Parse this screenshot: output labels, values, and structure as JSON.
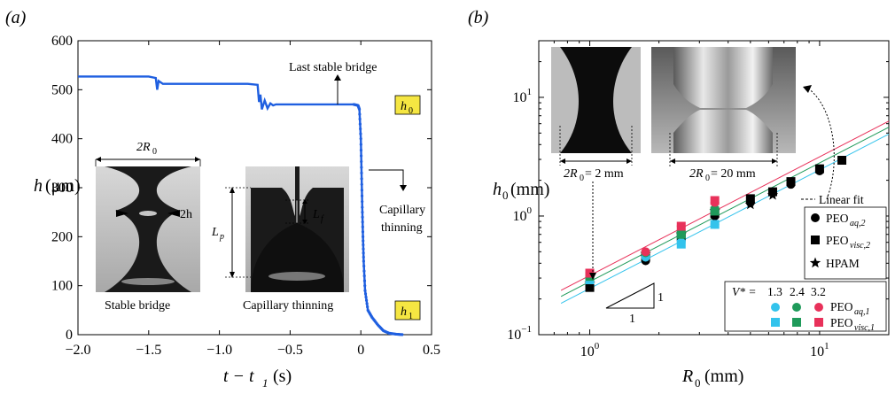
{
  "panel_a": {
    "label": "(a)",
    "ylabel_main": "h",
    "ylabel_unit": "(μm)",
    "xlabel": "t − t",
    "xlabel_sub": "1",
    "xlabel_unit": "(s)",
    "annotations": {
      "last_stable": "Last stable bridge",
      "capillary_thinning": "Capillary thinning",
      "h0": "h",
      "h0_sub": "0",
      "h1": "h",
      "h1_sub": "1",
      "two_r0": "2R",
      "two_r0_sub": "0",
      "two_h": "2h",
      "lf": "L",
      "lf_sub": "f",
      "lp": "L",
      "lp_sub": "p",
      "caption_stable": "Stable bridge",
      "caption_thinning": "Capillary thinning"
    },
    "highlight_color": "#f5e642"
  },
  "panel_b": {
    "label": "(b)",
    "ylabel_main": "h",
    "ylabel_sub": "0",
    "ylabel_unit": "(mm)",
    "xlabel_main": "R",
    "xlabel_sub": "0",
    "xlabel_unit": "(mm)",
    "inset_small": {
      "label": "2R",
      "label_sub": "0",
      "label_val": " = 2 mm"
    },
    "inset_large": {
      "label": "2R",
      "label_sub": "0",
      "label_val": " = 20 mm"
    },
    "linear_fit_label": "Linear fit",
    "slope_labels": [
      "1",
      "1"
    ],
    "legend_black": [
      {
        "label": "PEO",
        "sub": "aq,2",
        "marker": "circle"
      },
      {
        "label": "PEO",
        "sub": "visc,2",
        "marker": "square"
      },
      {
        "label": "HPAM",
        "sub": "",
        "marker": "star"
      }
    ],
    "legend_color": {
      "title": "V* =",
      "values": [
        "1.3",
        "2.4",
        "3.2"
      ],
      "rows": [
        {
          "label": "PEO",
          "sub": "aq,1",
          "marker": "circle"
        },
        {
          "label": "PEO",
          "sub": "visc,1",
          "marker": "square"
        }
      ]
    },
    "colors": {
      "v13": "#33c3ec",
      "v24": "#1f9a5a",
      "v32": "#e8315a"
    }
  },
  "chart_data": [
    {
      "type": "line",
      "panel": "a",
      "xlabel": "t − t1 (s)",
      "ylabel": "h (μm)",
      "xlim": [
        -2.0,
        0.5
      ],
      "ylim": [
        0,
        600
      ],
      "xticks": [
        "−2.0",
        "−1.5",
        "−1.0",
        "−0.5",
        "0",
        "0.5"
      ],
      "yticks": [
        "0",
        "100",
        "200",
        "300",
        "400",
        "500",
        "600"
      ],
      "color": "#1f5fe0",
      "x": [
        -2.0,
        -1.75,
        -1.5,
        -1.45,
        -1.44,
        -1.43,
        -1.4,
        -1.2,
        -1.0,
        -0.8,
        -0.73,
        -0.72,
        -0.71,
        -0.7,
        -0.68,
        -0.66,
        -0.64,
        -0.62,
        -0.6,
        -0.4,
        -0.2,
        -0.05,
        -0.02,
        -0.01,
        0.0,
        0.005,
        0.01,
        0.015,
        0.02,
        0.03,
        0.05,
        0.08,
        0.12,
        0.16,
        0.2,
        0.25,
        0.3
      ],
      "y": [
        527,
        527,
        527,
        524,
        500,
        518,
        512,
        512,
        512,
        512,
        510,
        475,
        490,
        460,
        478,
        462,
        472,
        468,
        470,
        470,
        470,
        470,
        468,
        460,
        400,
        330,
        260,
        200,
        150,
        90,
        50,
        35,
        20,
        8,
        3,
        1,
        0
      ]
    },
    {
      "type": "scatter",
      "panel": "b",
      "xscale": "log",
      "yscale": "log",
      "xlabel": "R0 (mm)",
      "ylabel": "h0 (mm)",
      "xlim": [
        0.6,
        20
      ],
      "ylim": [
        0.1,
        30
      ],
      "xticks": [
        "10^0",
        "10^1"
      ],
      "yticks": [
        "10^−1",
        "10^0",
        "10^1"
      ],
      "series": [
        {
          "name": "PEO aq,2",
          "marker": "circle",
          "color": "#000000",
          "x": [
            1,
            1,
            1.75,
            1.75,
            2.5,
            3.5,
            5,
            7.5,
            10
          ],
          "y": [
            0.26,
            0.28,
            0.42,
            0.46,
            0.62,
            1.0,
            1.3,
            1.85,
            2.4
          ]
        },
        {
          "name": "PEO visc,2",
          "marker": "square",
          "color": "#000000",
          "x": [
            1,
            1.75,
            2.5,
            3.5,
            5,
            6.25,
            7.5,
            10,
            12.5
          ],
          "y": [
            0.25,
            0.45,
            0.68,
            1.05,
            1.4,
            1.6,
            1.95,
            2.5,
            2.95
          ]
        },
        {
          "name": "HPAM",
          "marker": "star",
          "color": "#000000",
          "x": [
            1,
            1.75,
            2.5,
            3.5,
            5,
            6.25
          ],
          "y": [
            0.27,
            0.48,
            0.7,
            1.1,
            1.25,
            1.5
          ]
        },
        {
          "name": "PEO aq,1",
          "marker": "circle",
          "color": "#33c3ec",
          "x": [
            1,
            1.75,
            2.5,
            3.5
          ],
          "y": [
            0.3,
            0.45,
            0.6,
            0.85
          ]
        },
        {
          "name": "PEO aq,1",
          "marker": "circle",
          "color": "#1f9a5a",
          "x": [
            1,
            1.75,
            2.5,
            3.5
          ],
          "y": [
            0.31,
            0.49,
            0.72,
            1.15
          ]
        },
        {
          "name": "PEO aq,1",
          "marker": "circle",
          "color": "#e8315a",
          "x": [
            1,
            1.75,
            2.5,
            3.5
          ],
          "y": [
            0.33,
            0.5,
            0.82,
            1.3
          ]
        },
        {
          "name": "PEO visc,1",
          "marker": "square",
          "color": "#33c3ec",
          "x": [
            1,
            2.5,
            3.5
          ],
          "y": [
            0.29,
            0.58,
            0.85
          ]
        },
        {
          "name": "PEO visc,1",
          "marker": "square",
          "color": "#1f9a5a",
          "x": [
            1,
            2.5,
            3.5
          ],
          "y": [
            0.31,
            0.7,
            1.1
          ]
        },
        {
          "name": "PEO visc,1",
          "marker": "square",
          "color": "#e8315a",
          "x": [
            1,
            2.5,
            3.5
          ],
          "y": [
            0.33,
            0.82,
            1.35
          ]
        }
      ],
      "fit_lines": [
        {
          "color": "#e8315a",
          "coef": 0.315
        },
        {
          "color": "#1f9a5a",
          "coef": 0.28
        },
        {
          "color": "#33c3ec",
          "coef": 0.245
        }
      ]
    }
  ]
}
